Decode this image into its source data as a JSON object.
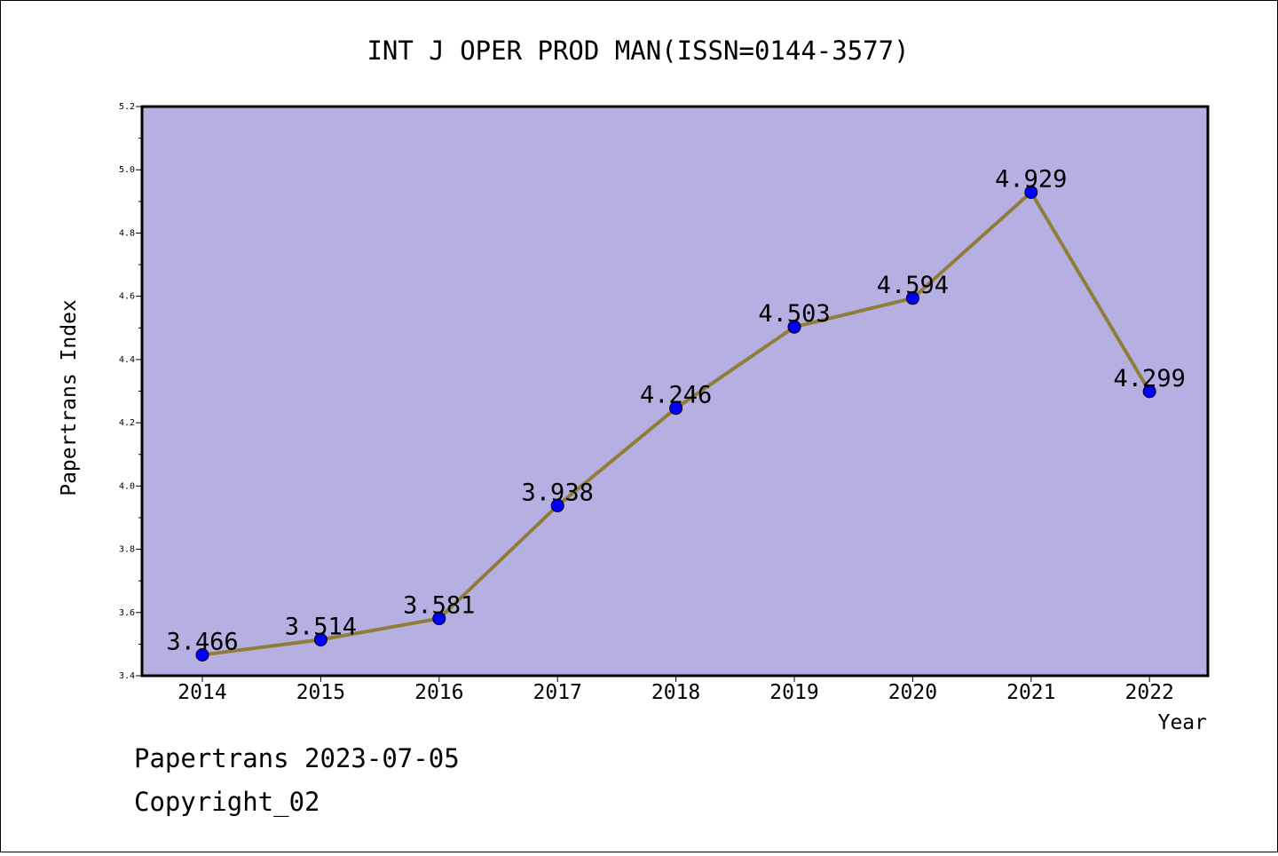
{
  "chart_data": {
    "type": "line",
    "title": "INT J OPER PROD MAN(ISSN=0144-3577)",
    "xlabel": "Year",
    "ylabel": "Papertrans Index",
    "categories": [
      "2014",
      "2015",
      "2016",
      "2017",
      "2018",
      "2019",
      "2020",
      "2021",
      "2022"
    ],
    "values": [
      3.466,
      3.514,
      3.581,
      3.938,
      4.246,
      4.503,
      4.594,
      4.929,
      4.299
    ],
    "data_labels": [
      "3.466",
      "3.514",
      "3.581",
      "3.938",
      "4.246",
      "4.503",
      "4.594",
      "4.929",
      "4.299"
    ],
    "ylim": [
      3.4,
      5.2
    ],
    "yticks": [
      "3.4",
      "3.6",
      "3.8",
      "4.0",
      "4.2",
      "4.4",
      "4.6",
      "4.8",
      "5.0",
      "5.2"
    ],
    "grid": false,
    "colors": {
      "plot_background": "#b5afe2",
      "line": "#917d3a",
      "marker": "#0000ff"
    }
  },
  "footer": {
    "line1": "Papertrans 2023-07-05",
    "line2": "Copyright_02"
  }
}
